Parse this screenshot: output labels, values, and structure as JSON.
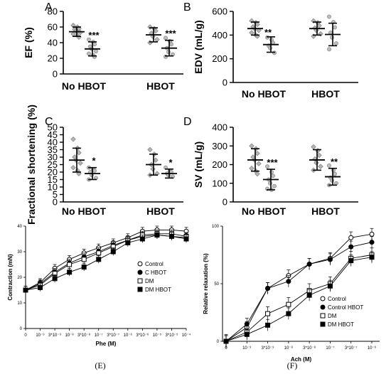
{
  "chart_data": [
    {
      "panel": "A",
      "type": "scatter",
      "ylabel": "EF (%)",
      "ylim": [
        0,
        80
      ],
      "yticks": [
        0,
        20,
        40,
        60,
        80
      ],
      "categories": [
        "No HBOT",
        "HBOT"
      ],
      "groups": [
        {
          "category": "No HBOT",
          "marker": "diamond",
          "mean": 54,
          "sd": 6,
          "points": [
            62,
            60,
            58,
            57,
            55,
            53,
            51,
            49,
            47
          ]
        },
        {
          "category": "No HBOT",
          "marker": "circle",
          "mean": 32,
          "sd": 9,
          "points": [
            44,
            41,
            38,
            35,
            32,
            29,
            26,
            24,
            22
          ],
          "significance": "***"
        },
        {
          "category": "HBOT",
          "marker": "diamond",
          "mean": 50,
          "sd": 9,
          "points": [
            60,
            58,
            55,
            52,
            48,
            44,
            40
          ]
        },
        {
          "category": "HBOT",
          "marker": "circle",
          "mean": 33,
          "sd": 10,
          "points": [
            46,
            42,
            38,
            33,
            28,
            25,
            22
          ],
          "significance": "***"
        }
      ]
    },
    {
      "panel": "B",
      "type": "scatter",
      "ylabel": "EDV (mL/g)",
      "ylim": [
        0,
        600
      ],
      "yticks": [
        0,
        200,
        400,
        600
      ],
      "categories": [
        "No HBOT",
        "HBOT"
      ],
      "groups": [
        {
          "category": "No HBOT",
          "marker": "diamond",
          "mean": 455,
          "sd": 55,
          "points": [
            520,
            505,
            490,
            470,
            455,
            440,
            420,
            400,
            390
          ]
        },
        {
          "category": "No HBOT",
          "marker": "circle",
          "mean": 320,
          "sd": 65,
          "points": [
            380,
            360,
            335,
            310,
            290,
            250
          ]
        },
        {
          "category": "HBOT",
          "marker": "diamond",
          "mean": 455,
          "sd": 55,
          "points": [
            520,
            505,
            480,
            460,
            440,
            410,
            390
          ]
        },
        {
          "category": "HBOT",
          "marker": "circle",
          "mean": 405,
          "sd": 95,
          "points": [
            555,
            510,
            465,
            420,
            380,
            330,
            280
          ]
        }
      ],
      "annotations": [
        {
          "text": "**",
          "category": "No HBOT"
        }
      ]
    },
    {
      "panel": "C",
      "type": "scatter",
      "ylabel": "Fractional shortening (%)",
      "ylim": [
        0,
        50
      ],
      "yticks": [
        0,
        5,
        10,
        15,
        20,
        25,
        30,
        35,
        40,
        45,
        50
      ],
      "categories": [
        "No HBOT",
        "HBOT"
      ],
      "groups": [
        {
          "category": "No HBOT",
          "marker": "diamond",
          "mean": 28,
          "sd": 8,
          "points": [
            42,
            36,
            33,
            30,
            28,
            26,
            23,
            21,
            19
          ]
        },
        {
          "category": "No HBOT",
          "marker": "circle",
          "mean": 19,
          "sd": 4,
          "points": [
            23,
            22,
            21,
            20,
            18,
            16,
            15
          ],
          "significance": "*"
        },
        {
          "category": "HBOT",
          "marker": "diamond",
          "mean": 25,
          "sd": 7,
          "points": [
            35,
            32,
            28,
            25,
            22,
            19,
            18
          ]
        },
        {
          "category": "HBOT",
          "marker": "circle",
          "mean": 19,
          "sd": 3,
          "points": [
            23,
            21,
            20,
            19,
            18,
            17
          ],
          "significance": "*"
        }
      ]
    },
    {
      "panel": "D",
      "type": "scatter",
      "ylabel": "SV (mL/g)",
      "ylim": [
        0,
        400
      ],
      "yticks": [
        0,
        100,
        200,
        300,
        400
      ],
      "categories": [
        "No HBOT",
        "HBOT"
      ],
      "groups": [
        {
          "category": "No HBOT",
          "marker": "diamond",
          "mean": 225,
          "sd": 60,
          "points": [
            300,
            285,
            260,
            240,
            225,
            205,
            180,
            165,
            150
          ]
        },
        {
          "category": "No HBOT",
          "marker": "circle",
          "mean": 120,
          "sd": 55,
          "points": [
            190,
            160,
            140,
            120,
            100,
            85,
            70,
            65
          ],
          "significance": "***"
        },
        {
          "category": "HBOT",
          "marker": "diamond",
          "mean": 225,
          "sd": 55,
          "points": [
            295,
            275,
            250,
            230,
            210,
            190,
            170
          ]
        },
        {
          "category": "HBOT",
          "marker": "circle",
          "mean": 135,
          "sd": 45,
          "points": [
            195,
            170,
            150,
            130,
            115,
            100,
            90
          ],
          "significance": "**"
        }
      ]
    },
    {
      "panel": "E",
      "type": "line",
      "caption": "(E)",
      "xlabel": "Phe (M)",
      "ylabel": "Contraction (mN)",
      "ylim": [
        0,
        40
      ],
      "yticks": [
        0,
        10,
        20,
        30,
        40
      ],
      "x": [
        "0",
        "10⁻⁹",
        "3*10⁻⁹",
        "10⁻⁸",
        "3*10⁻⁸",
        "10⁻⁷",
        "3*10⁻⁷",
        "10⁻⁶",
        "3*10⁻⁶",
        "10⁻⁵",
        "3*10⁻⁵",
        "10⁻⁴"
      ],
      "series": [
        {
          "name": "Control",
          "marker": "circle-open",
          "values": [
            15,
            18,
            23.5,
            27,
            29.5,
            31.5,
            33.5,
            35.5,
            38,
            38.5,
            38.5,
            38
          ],
          "err": 1.5
        },
        {
          "name": "C HBOT",
          "marker": "circle-filled",
          "values": [
            15,
            17.5,
            22,
            25.5,
            28,
            30,
            32.5,
            34.5,
            36,
            36.5,
            36,
            35.5
          ],
          "err": 1.5
        },
        {
          "name": "DM",
          "marker": "square-open",
          "values": [
            15,
            17,
            21.5,
            25,
            27,
            29.5,
            32,
            34.5,
            36.5,
            37,
            37,
            36
          ],
          "err": 1.5
        },
        {
          "name": "DM HBOT",
          "marker": "square-filled",
          "values": [
            15,
            16,
            19.5,
            22,
            24,
            27,
            30,
            33.5,
            35,
            36.5,
            36,
            35
          ],
          "err": 1.5
        }
      ]
    },
    {
      "panel": "F",
      "type": "line",
      "caption": "(F)",
      "xlabel": "Ach (M)",
      "ylabel": "Relative relaxation (%)",
      "ylim": [
        0,
        100
      ],
      "yticks": [
        0,
        50,
        100
      ],
      "x": [
        "0",
        "10⁻⁹",
        "3*10⁻⁹",
        "10⁻⁸",
        "3*10⁻⁸",
        "10⁻⁷",
        "3*10⁻⁷",
        "10⁻⁶"
      ],
      "series": [
        {
          "name": "Control",
          "marker": "circle-open",
          "values": [
            0,
            12,
            46,
            57,
            67,
            72,
            90,
            93
          ],
          "err": 5
        },
        {
          "name": "Control HBOT",
          "marker": "circle-filled",
          "values": [
            0,
            15,
            46,
            52,
            67,
            71,
            82,
            86
          ],
          "err": 5
        },
        {
          "name": "DM",
          "marker": "square-open",
          "values": [
            0,
            8,
            24,
            32,
            44,
            50,
            72,
            75
          ],
          "err": 6
        },
        {
          "name": "DM HBOT",
          "marker": "square-filled",
          "values": [
            0,
            6,
            14,
            24,
            40,
            48,
            70,
            73
          ],
          "err": 5
        }
      ]
    }
  ]
}
